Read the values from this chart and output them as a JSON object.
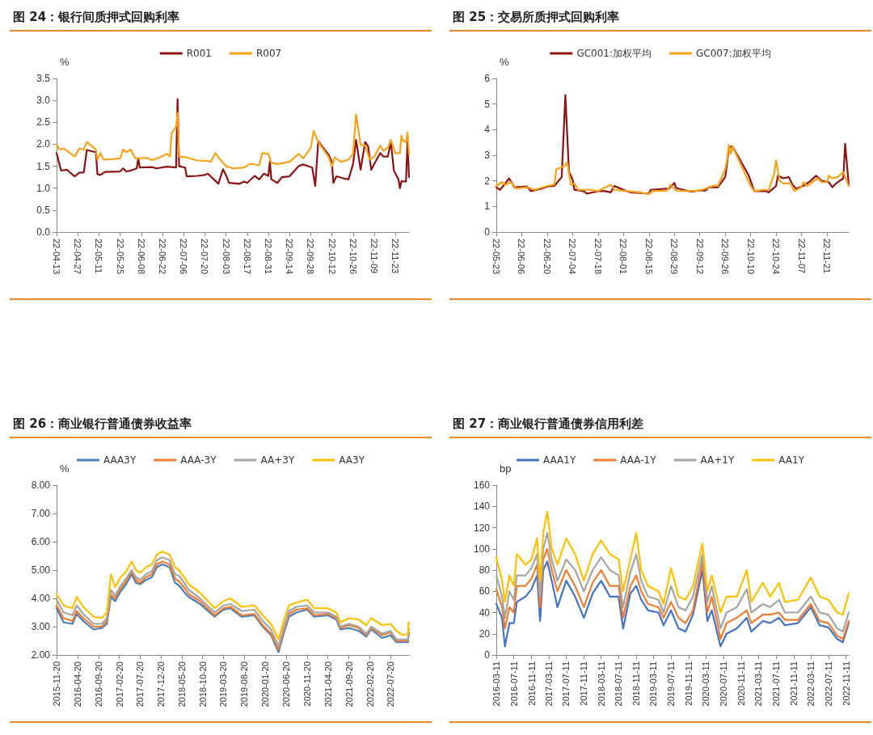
{
  "chart_data": [
    {
      "type": "line",
      "title": "图 24：银行间质押式回购利率",
      "ylabel": "%",
      "legend": "top",
      "grid": false,
      "marker": "none",
      "line_style": "solid",
      "xlim": [
        "2022-04-13",
        "2022-12-02"
      ],
      "xticks": [
        {
          "value": "2022-04-13",
          "label": "22-04-13"
        },
        {
          "value": "2022-04-27",
          "label": "22-04-27"
        },
        {
          "value": "2022-05-11",
          "label": "22-05-11"
        },
        {
          "value": "2022-05-25",
          "label": "22-05-25"
        },
        {
          "value": "2022-06-08",
          "label": "22-06-08"
        },
        {
          "value": "2022-06-22",
          "label": "22-06-22"
        },
        {
          "value": "2022-07-06",
          "label": "22-07-06"
        },
        {
          "value": "2022-07-20",
          "label": "22-07-20"
        },
        {
          "value": "2022-08-03",
          "label": "22-08-03"
        },
        {
          "value": "2022-08-17",
          "label": "22-08-17"
        },
        {
          "value": "2022-08-31",
          "label": "22-08-31"
        },
        {
          "value": "2022-09-14",
          "label": "22-09-14"
        },
        {
          "value": "2022-09-28",
          "label": "22-09-28"
        },
        {
          "value": "2022-10-12",
          "label": "22-10-12"
        },
        {
          "value": "2022-10-26",
          "label": "22-10-26"
        },
        {
          "value": "2022-11-09",
          "label": "22-11-09"
        },
        {
          "value": "2022-11-23",
          "label": "22-11-23"
        }
      ],
      "ylim": [
        0,
        3.5
      ],
      "yticks": [
        {
          "value": 0,
          "label": "0.0"
        },
        {
          "value": 0.5,
          "label": "0.5"
        },
        {
          "value": 1,
          "label": "1.0"
        },
        {
          "value": 1.5,
          "label": "1.5"
        },
        {
          "value": 2,
          "label": "2.0"
        },
        {
          "value": 2.5,
          "label": "2.5"
        },
        {
          "value": 3,
          "label": "3.0"
        },
        {
          "value": 3.5,
          "label": "3.5"
        }
      ],
      "series": [
        {
          "name": "R001",
          "color": "#8b1313",
          "x": [
            "2022-04-13",
            "2022-04-16",
            "2022-04-20",
            "2022-04-22",
            "2022-04-25",
            "2022-04-28",
            "2022-05-01",
            "2022-05-03",
            "2022-05-09",
            "2022-05-10",
            "2022-05-12",
            "2022-05-15",
            "2022-05-25",
            "2022-05-27",
            "2022-05-29",
            "2022-06-01",
            "2022-06-05",
            "2022-06-06",
            "2022-06-07",
            "2022-06-15",
            "2022-06-18",
            "2022-06-25",
            "2022-07-01",
            "2022-07-02",
            "2022-07-03",
            "2022-07-07",
            "2022-07-08",
            "2022-07-15",
            "2022-07-20",
            "2022-07-22",
            "2022-07-26",
            "2022-07-29",
            "2022-08-01",
            "2022-08-03",
            "2022-08-05",
            "2022-08-12",
            "2022-08-15",
            "2022-08-17",
            "2022-08-22",
            "2022-08-25",
            "2022-08-28",
            "2022-08-31",
            "2022-09-01",
            "2022-09-02",
            "2022-09-06",
            "2022-09-09",
            "2022-09-14",
            "2022-09-20",
            "2022-09-23",
            "2022-09-29",
            "2022-10-01",
            "2022-10-03",
            "2022-10-10",
            "2022-10-12",
            "2022-10-13",
            "2022-10-15",
            "2022-10-20",
            "2022-10-23",
            "2022-10-26",
            "2022-10-28",
            "2022-10-31",
            "2022-11-03",
            "2022-11-05",
            "2022-11-07",
            "2022-11-09",
            "2022-11-13",
            "2022-11-15",
            "2022-11-18",
            "2022-11-20",
            "2022-11-22",
            "2022-11-25",
            "2022-11-26",
            "2022-11-27",
            "2022-11-30",
            "2022-12-01",
            "2022-12-02"
          ],
          "values": [
            1.8,
            1.4,
            1.42,
            1.35,
            1.27,
            1.35,
            1.36,
            1.87,
            1.82,
            1.32,
            1.3,
            1.37,
            1.38,
            1.45,
            1.38,
            1.4,
            1.45,
            1.68,
            1.47,
            1.48,
            1.45,
            1.49,
            1.47,
            3.03,
            1.5,
            1.47,
            1.27,
            1.28,
            1.3,
            1.33,
            1.2,
            1.1,
            1.43,
            1.3,
            1.12,
            1.1,
            1.15,
            1.12,
            1.28,
            1.2,
            1.33,
            1.28,
            1.6,
            1.2,
            1.12,
            1.25,
            1.27,
            1.5,
            1.54,
            1.47,
            1.05,
            2.07,
            1.75,
            1.6,
            1.12,
            1.27,
            1.22,
            1.2,
            1.55,
            2.1,
            1.42,
            2.05,
            1.95,
            1.42,
            1.55,
            1.8,
            1.72,
            1.72,
            2.05,
            1.4,
            1.2,
            1.0,
            1.16,
            1.15,
            2.05,
            1.25
          ]
        },
        {
          "name": "R007",
          "color": "#f7a21b",
          "x": [
            "2022-04-13",
            "2022-04-15",
            "2022-04-18",
            "2022-04-22",
            "2022-04-25",
            "2022-04-28",
            "2022-05-01",
            "2022-05-03",
            "2022-05-09",
            "2022-05-10",
            "2022-05-12",
            "2022-05-14",
            "2022-05-20",
            "2022-05-25",
            "2022-05-27",
            "2022-05-29",
            "2022-06-01",
            "2022-06-04",
            "2022-06-12",
            "2022-06-15",
            "2022-06-20",
            "2022-06-25",
            "2022-06-27",
            "2022-06-28",
            "2022-07-01",
            "2022-07-02",
            "2022-07-03",
            "2022-07-08",
            "2022-07-15",
            "2022-07-22",
            "2022-07-24",
            "2022-07-27",
            "2022-07-29",
            "2022-08-03",
            "2022-08-08",
            "2022-08-15",
            "2022-08-19",
            "2022-08-25",
            "2022-08-27",
            "2022-08-31",
            "2022-09-02",
            "2022-09-06",
            "2022-09-14",
            "2022-09-20",
            "2022-09-23",
            "2022-09-28",
            "2022-09-30",
            "2022-10-03",
            "2022-10-10",
            "2022-10-12",
            "2022-10-14",
            "2022-10-18",
            "2022-10-23",
            "2022-10-26",
            "2022-10-28",
            "2022-10-31",
            "2022-11-03",
            "2022-11-06",
            "2022-11-09",
            "2022-11-13",
            "2022-11-15",
            "2022-11-18",
            "2022-11-20",
            "2022-11-23",
            "2022-11-26",
            "2022-11-27",
            "2022-11-28",
            "2022-11-30",
            "2022-12-01",
            "2022-12-02"
          ],
          "values": [
            2.0,
            1.88,
            1.9,
            1.8,
            1.72,
            1.9,
            1.88,
            2.05,
            1.88,
            1.65,
            1.8,
            1.65,
            1.66,
            1.68,
            1.88,
            1.82,
            1.88,
            1.68,
            1.69,
            1.64,
            1.7,
            1.78,
            1.72,
            2.25,
            2.4,
            2.72,
            1.72,
            1.7,
            1.63,
            1.62,
            1.6,
            1.8,
            1.7,
            1.5,
            1.45,
            1.47,
            1.56,
            1.52,
            1.8,
            1.78,
            1.58,
            1.55,
            1.6,
            1.78,
            1.68,
            1.92,
            2.3,
            2.05,
            1.7,
            1.5,
            1.7,
            1.6,
            1.65,
            1.78,
            2.68,
            1.98,
            1.98,
            1.65,
            1.72,
            1.97,
            1.85,
            1.92,
            2.1,
            1.8,
            1.8,
            2.2,
            2.08,
            2.05,
            2.27,
            1.78
          ]
        }
      ]
    },
    {
      "type": "line",
      "title": "图 25：交易所质押式回购利率",
      "ylabel": "%",
      "legend": "top",
      "grid": false,
      "marker": "none",
      "line_style": "solid",
      "xlim": [
        "2022-05-23",
        "2022-12-03"
      ],
      "xticks": [
        {
          "value": "2022-05-23",
          "label": "22-05-23"
        },
        {
          "value": "2022-06-06",
          "label": "22-06-06"
        },
        {
          "value": "2022-06-20",
          "label": "22-06-20"
        },
        {
          "value": "2022-07-04",
          "label": "22-07-04"
        },
        {
          "value": "2022-07-18",
          "label": "22-07-18"
        },
        {
          "value": "2022-08-01",
          "label": "22-08-01"
        },
        {
          "value": "2022-08-15",
          "label": "22-08-15"
        },
        {
          "value": "2022-08-29",
          "label": "22-08-29"
        },
        {
          "value": "2022-09-12",
          "label": "22-09-12"
        },
        {
          "value": "2022-09-26",
          "label": "22-09-26"
        },
        {
          "value": "2022-10-10",
          "label": "22-10-10"
        },
        {
          "value": "2022-10-24",
          "label": "22-10-24"
        },
        {
          "value": "2022-11-07",
          "label": "22-11-07"
        },
        {
          "value": "2022-11-21",
          "label": "22-11-21"
        }
      ],
      "ylim": [
        0,
        6
      ],
      "yticks": [
        0,
        1,
        2,
        3,
        4,
        5,
        6
      ],
      "series": [
        {
          "name": "GC001:加权平均",
          "color": "#8b1313",
          "x": [
            "2022-05-23",
            "2022-05-25",
            "2022-05-28",
            "2022-05-30",
            "2022-06-02",
            "2022-06-09",
            "2022-06-11",
            "2022-06-17",
            "2022-06-20",
            "2022-06-24",
            "2022-06-28",
            "2022-06-30",
            "2022-07-02",
            "2022-07-04",
            "2022-07-05",
            "2022-07-10",
            "2022-07-12",
            "2022-07-18",
            "2022-07-22",
            "2022-07-25",
            "2022-07-27",
            "2022-08-01",
            "2022-08-05",
            "2022-08-15",
            "2022-08-16",
            "2022-08-26",
            "2022-08-29",
            "2022-08-30",
            "2022-09-07",
            "2022-09-12",
            "2022-09-15",
            "2022-09-17",
            "2022-09-22",
            "2022-09-26",
            "2022-09-27",
            "2022-09-28",
            "2022-09-30",
            "2022-10-09",
            "2022-10-12",
            "2022-10-14",
            "2022-10-18",
            "2022-10-20",
            "2022-10-24",
            "2022-10-25",
            "2022-10-28",
            "2022-10-31",
            "2022-11-02",
            "2022-11-04",
            "2022-11-08",
            "2022-11-12",
            "2022-11-15",
            "2022-11-18",
            "2022-11-22",
            "2022-11-24",
            "2022-11-26",
            "2022-11-30",
            "2022-12-01",
            "2022-12-03"
          ],
          "values": [
            1.75,
            1.65,
            1.9,
            2.1,
            1.75,
            1.78,
            1.6,
            1.7,
            1.78,
            1.8,
            2.15,
            5.35,
            2.35,
            2.05,
            1.65,
            1.6,
            1.5,
            1.6,
            1.6,
            1.55,
            1.8,
            1.65,
            1.55,
            1.5,
            1.65,
            1.7,
            1.92,
            1.72,
            1.58,
            1.62,
            1.62,
            1.75,
            1.75,
            2.15,
            2.65,
            3.3,
            3.35,
            2.2,
            1.6,
            1.6,
            1.6,
            1.55,
            1.8,
            2.2,
            2.1,
            2.15,
            1.85,
            1.7,
            1.8,
            2.0,
            2.2,
            2.0,
            1.95,
            1.75,
            1.9,
            2.1,
            3.45,
            1.85
          ]
        },
        {
          "name": "GC007:加权平均",
          "color": "#f7a21b",
          "x": [
            "2022-05-23",
            "2022-05-26",
            "2022-05-28",
            "2022-05-31",
            "2022-06-03",
            "2022-06-09",
            "2022-06-13",
            "2022-06-20",
            "2022-06-24",
            "2022-06-25",
            "2022-06-30",
            "2022-07-01",
            "2022-07-03",
            "2022-07-05",
            "2022-07-07",
            "2022-07-14",
            "2022-07-18",
            "2022-07-25",
            "2022-07-27",
            "2022-08-03",
            "2022-08-10",
            "2022-08-15",
            "2022-08-17",
            "2022-08-25",
            "2022-08-27",
            "2022-08-30",
            "2022-09-05",
            "2022-09-12",
            "2022-09-20",
            "2022-09-22",
            "2022-09-26",
            "2022-09-27",
            "2022-09-28",
            "2022-09-29",
            "2022-09-30",
            "2022-10-10",
            "2022-10-12",
            "2022-10-17",
            "2022-10-20",
            "2022-10-23",
            "2022-10-24",
            "2022-10-26",
            "2022-10-28",
            "2022-11-01",
            "2022-11-03",
            "2022-11-07",
            "2022-11-08",
            "2022-11-10",
            "2022-11-16",
            "2022-11-18",
            "2022-11-21",
            "2022-11-22",
            "2022-11-24",
            "2022-11-27",
            "2022-11-30",
            "2022-12-03"
          ],
          "values": [
            1.8,
            1.95,
            1.85,
            1.95,
            1.7,
            1.75,
            1.65,
            1.8,
            1.85,
            2.45,
            2.6,
            2.75,
            1.85,
            1.9,
            1.65,
            1.65,
            1.6,
            1.85,
            1.65,
            1.6,
            1.55,
            1.48,
            1.6,
            1.62,
            1.85,
            1.62,
            1.6,
            1.62,
            1.82,
            1.8,
            2.45,
            2.8,
            3.4,
            3.05,
            3.35,
            1.8,
            1.6,
            1.65,
            1.65,
            2.3,
            2.8,
            2.0,
            1.9,
            1.9,
            1.6,
            1.75,
            1.95,
            1.8,
            2.1,
            1.95,
            1.95,
            2.2,
            2.1,
            2.15,
            2.35,
            1.8
          ]
        }
      ]
    },
    {
      "type": "line",
      "title": "图 26：商业银行普通债券收益率",
      "ylabel": "%",
      "legend": "top",
      "grid": false,
      "marker": "none",
      "line_style": "solid",
      "xlim": [
        "2015-11-20",
        "2022-12-02"
      ],
      "xticks": [
        "2015-11-20",
        "2016-04-20",
        "2016-09-20",
        "2017-02-20",
        "2017-07-20",
        "2017-12-20",
        "2018-05-20",
        "2018-10-20",
        "2019-03-20",
        "2019-08-20",
        "2020-01-20",
        "2020-06-20",
        "2020-11-20",
        "2021-04-20",
        "2021-09-20",
        "2022-02-20",
        "2022-07-20"
      ],
      "ylim": [
        2,
        8
      ],
      "yticks": [
        {
          "value": 2,
          "label": "2.00"
        },
        {
          "value": 3,
          "label": "3.00"
        },
        {
          "value": 4,
          "label": "4.00"
        },
        {
          "value": 5,
          "label": "5.00"
        },
        {
          "value": 6,
          "label": "6.00"
        },
        {
          "value": 7,
          "label": "7.00"
        },
        {
          "value": 8,
          "label": "8.00"
        }
      ],
      "x": [
        "2015-11-20",
        "2016-01-10",
        "2016-03-15",
        "2016-04-15",
        "2016-06-01",
        "2016-08-15",
        "2016-10-15",
        "2016-11-20",
        "2016-12-20",
        "2017-01-20",
        "2017-03-01",
        "2017-04-10",
        "2017-05-20",
        "2017-06-20",
        "2017-07-20",
        "2017-09-01",
        "2017-10-15",
        "2017-11-20",
        "2017-12-30",
        "2018-02-20",
        "2018-04-01",
        "2018-05-01",
        "2018-06-20",
        "2018-07-10",
        "2018-10-01",
        "2019-01-15",
        "2019-03-20",
        "2019-05-10",
        "2019-08-01",
        "2019-11-01",
        "2020-01-01",
        "2020-03-01",
        "2020-04-25",
        "2020-06-01",
        "2020-07-10",
        "2020-09-01",
        "2020-11-20",
        "2021-01-10",
        "2021-04-20",
        "2021-06-20",
        "2021-07-20",
        "2021-09-20",
        "2021-12-01",
        "2022-01-25",
        "2022-03-01",
        "2022-05-20",
        "2022-07-20",
        "2022-09-01",
        "2022-10-20",
        "2022-11-25",
        "2022-11-28",
        "2022-12-02"
      ],
      "series": [
        {
          "name": "AAA3Y",
          "color": "#4a7ebb",
          "values": [
            3.65,
            3.15,
            3.1,
            3.45,
            3.2,
            2.9,
            2.95,
            3.1,
            4.05,
            3.9,
            4.25,
            4.5,
            4.85,
            4.55,
            4.5,
            4.65,
            4.75,
            5.1,
            5.2,
            5.1,
            4.55,
            4.45,
            4.15,
            4.05,
            3.8,
            3.35,
            3.6,
            3.65,
            3.35,
            3.4,
            3.0,
            2.7,
            2.1,
            2.75,
            3.35,
            3.5,
            3.6,
            3.35,
            3.4,
            3.25,
            2.9,
            2.95,
            2.85,
            2.65,
            2.9,
            2.6,
            2.7,
            2.45,
            2.45,
            2.45,
            2.7,
            2.75
          ]
        },
        {
          "name": "AAA-3Y",
          "color": "#ed7d31",
          "values": [
            3.75,
            3.3,
            3.2,
            3.55,
            3.3,
            3.0,
            3.0,
            3.2,
            4.15,
            4.0,
            4.35,
            4.6,
            4.95,
            4.65,
            4.55,
            4.75,
            4.85,
            5.2,
            5.3,
            5.2,
            4.7,
            4.6,
            4.3,
            4.15,
            3.9,
            3.4,
            3.65,
            3.7,
            3.4,
            3.45,
            3.05,
            2.75,
            2.2,
            2.85,
            3.45,
            3.6,
            3.65,
            3.4,
            3.45,
            3.3,
            2.95,
            3.05,
            2.95,
            2.7,
            2.95,
            2.7,
            2.8,
            2.5,
            2.5,
            2.5,
            2.75,
            2.8
          ]
        },
        {
          "name": "AA+3Y",
          "color": "#a5a5a5",
          "values": [
            3.95,
            3.5,
            3.4,
            3.75,
            3.45,
            3.1,
            3.1,
            3.3,
            4.3,
            4.1,
            4.45,
            4.7,
            5.0,
            4.75,
            4.65,
            4.85,
            4.95,
            5.35,
            5.45,
            5.35,
            4.85,
            4.8,
            4.45,
            4.3,
            4.0,
            3.5,
            3.75,
            3.8,
            3.55,
            3.6,
            3.2,
            2.9,
            2.3,
            2.95,
            3.55,
            3.7,
            3.75,
            3.5,
            3.5,
            3.35,
            3.0,
            3.1,
            3.0,
            2.75,
            3.0,
            2.75,
            2.85,
            2.55,
            2.55,
            2.55,
            2.85,
            2.9
          ]
        },
        {
          "name": "AA3Y",
          "color": "#ffc000",
          "values": [
            4.15,
            3.75,
            3.65,
            4.05,
            3.7,
            3.35,
            3.3,
            3.5,
            4.85,
            4.4,
            4.75,
            4.95,
            5.3,
            5.0,
            4.9,
            5.1,
            5.2,
            5.55,
            5.65,
            5.55,
            5.1,
            5.0,
            4.65,
            4.5,
            4.2,
            3.65,
            3.9,
            4.0,
            3.7,
            3.75,
            3.4,
            3.1,
            2.55,
            3.2,
            3.75,
            3.85,
            3.95,
            3.65,
            3.65,
            3.5,
            3.15,
            3.3,
            3.25,
            3.05,
            3.3,
            3.05,
            3.1,
            2.85,
            2.7,
            2.75,
            3.15,
            3.1
          ]
        }
      ]
    },
    {
      "type": "line",
      "title": "图 27：商业银行普通债券信用利差",
      "ylabel": "bp",
      "legend": "top",
      "grid": false,
      "marker": "none",
      "line_style": "solid",
      "xlim": [
        "2016-03-11",
        "2022-11-30"
      ],
      "xticks": [
        "2016-03-11",
        "2016-07-11",
        "2016-11-11",
        "2017-03-11",
        "2017-07-11",
        "2017-11-11",
        "2018-03-11",
        "2018-07-11",
        "2018-11-11",
        "2019-03-11",
        "2019-07-11",
        "2019-11-11",
        "2020-03-11",
        "2020-07-11",
        "2020-11-11",
        "2021-03-11",
        "2021-07-11",
        "2021-11-11",
        "2022-03-11",
        "2022-07-11",
        "2022-11-11"
      ],
      "ylim": [
        0,
        160
      ],
      "yticks": [
        0,
        20,
        40,
        60,
        80,
        100,
        120,
        140,
        160
      ],
      "x": [
        "2016-03-11",
        "2016-04-20",
        "2016-05-10",
        "2016-06-10",
        "2016-07-11",
        "2016-08-01",
        "2016-10-01",
        "2016-11-11",
        "2016-12-20",
        "2017-01-10",
        "2017-02-01",
        "2017-03-01",
        "2017-04-01",
        "2017-05-11",
        "2017-07-11",
        "2017-09-11",
        "2017-11-11",
        "2018-01-11",
        "2018-03-11",
        "2018-05-11",
        "2018-07-11",
        "2018-08-11",
        "2018-10-01",
        "2018-11-11",
        "2018-12-15",
        "2019-02-01",
        "2019-04-15",
        "2019-05-20",
        "2019-07-11",
        "2019-09-01",
        "2019-10-20",
        "2019-12-11",
        "2020-02-15",
        "2020-03-20",
        "2020-04-20",
        "2020-06-20",
        "2020-08-01",
        "2020-10-11",
        "2020-12-20",
        "2021-01-20",
        "2021-04-11",
        "2021-06-01",
        "2021-08-01",
        "2021-09-11",
        "2021-12-11",
        "2022-03-11",
        "2022-05-11",
        "2022-07-11",
        "2022-09-11",
        "2022-10-20",
        "2022-11-30"
      ],
      "series": [
        {
          "name": "AAA1Y",
          "color": "#4472c4",
          "values": [
            48,
            35,
            8,
            30,
            30,
            50,
            55,
            62,
            75,
            32,
            80,
            88,
            70,
            45,
            70,
            55,
            35,
            58,
            70,
            55,
            55,
            25,
            58,
            65,
            52,
            42,
            40,
            28,
            42,
            25,
            22,
            38,
            80,
            32,
            42,
            8,
            20,
            25,
            35,
            22,
            32,
            30,
            35,
            28,
            30,
            45,
            28,
            26,
            15,
            12,
            30
          ]
        },
        {
          "name": "AAA-1Y",
          "color": "#ed7d31",
          "values": [
            62,
            45,
            25,
            45,
            40,
            65,
            65,
            72,
            85,
            45,
            90,
            100,
            80,
            60,
            80,
            65,
            45,
            68,
            80,
            65,
            65,
            35,
            65,
            75,
            60,
            48,
            45,
            35,
            50,
            35,
            30,
            42,
            88,
            40,
            55,
            15,
            30,
            35,
            42,
            30,
            38,
            38,
            40,
            33,
            33,
            48,
            32,
            30,
            18,
            15,
            32
          ]
        },
        {
          "name": "AA+1Y",
          "color": "#a5a5a5",
          "values": [
            75,
            55,
            35,
            60,
            52,
            75,
            75,
            82,
            95,
            55,
            100,
            115,
            90,
            70,
            90,
            80,
            60,
            80,
            92,
            80,
            75,
            45,
            78,
            95,
            70,
            55,
            52,
            40,
            65,
            45,
            42,
            55,
            95,
            50,
            65,
            25,
            40,
            45,
            62,
            40,
            48,
            45,
            52,
            40,
            40,
            55,
            40,
            38,
            25,
            22,
            40
          ]
        },
        {
          "name": "AA1Y",
          "color": "#ffc000",
          "values": [
            92,
            70,
            50,
            75,
            65,
            95,
            85,
            90,
            110,
            70,
            115,
            135,
            100,
            85,
            110,
            95,
            70,
            95,
            108,
            95,
            90,
            60,
            90,
            115,
            80,
            65,
            60,
            48,
            82,
            55,
            52,
            65,
            105,
            60,
            75,
            40,
            55,
            55,
            80,
            50,
            68,
            55,
            68,
            50,
            52,
            73,
            55,
            52,
            40,
            38,
            58
          ]
        }
      ]
    }
  ]
}
